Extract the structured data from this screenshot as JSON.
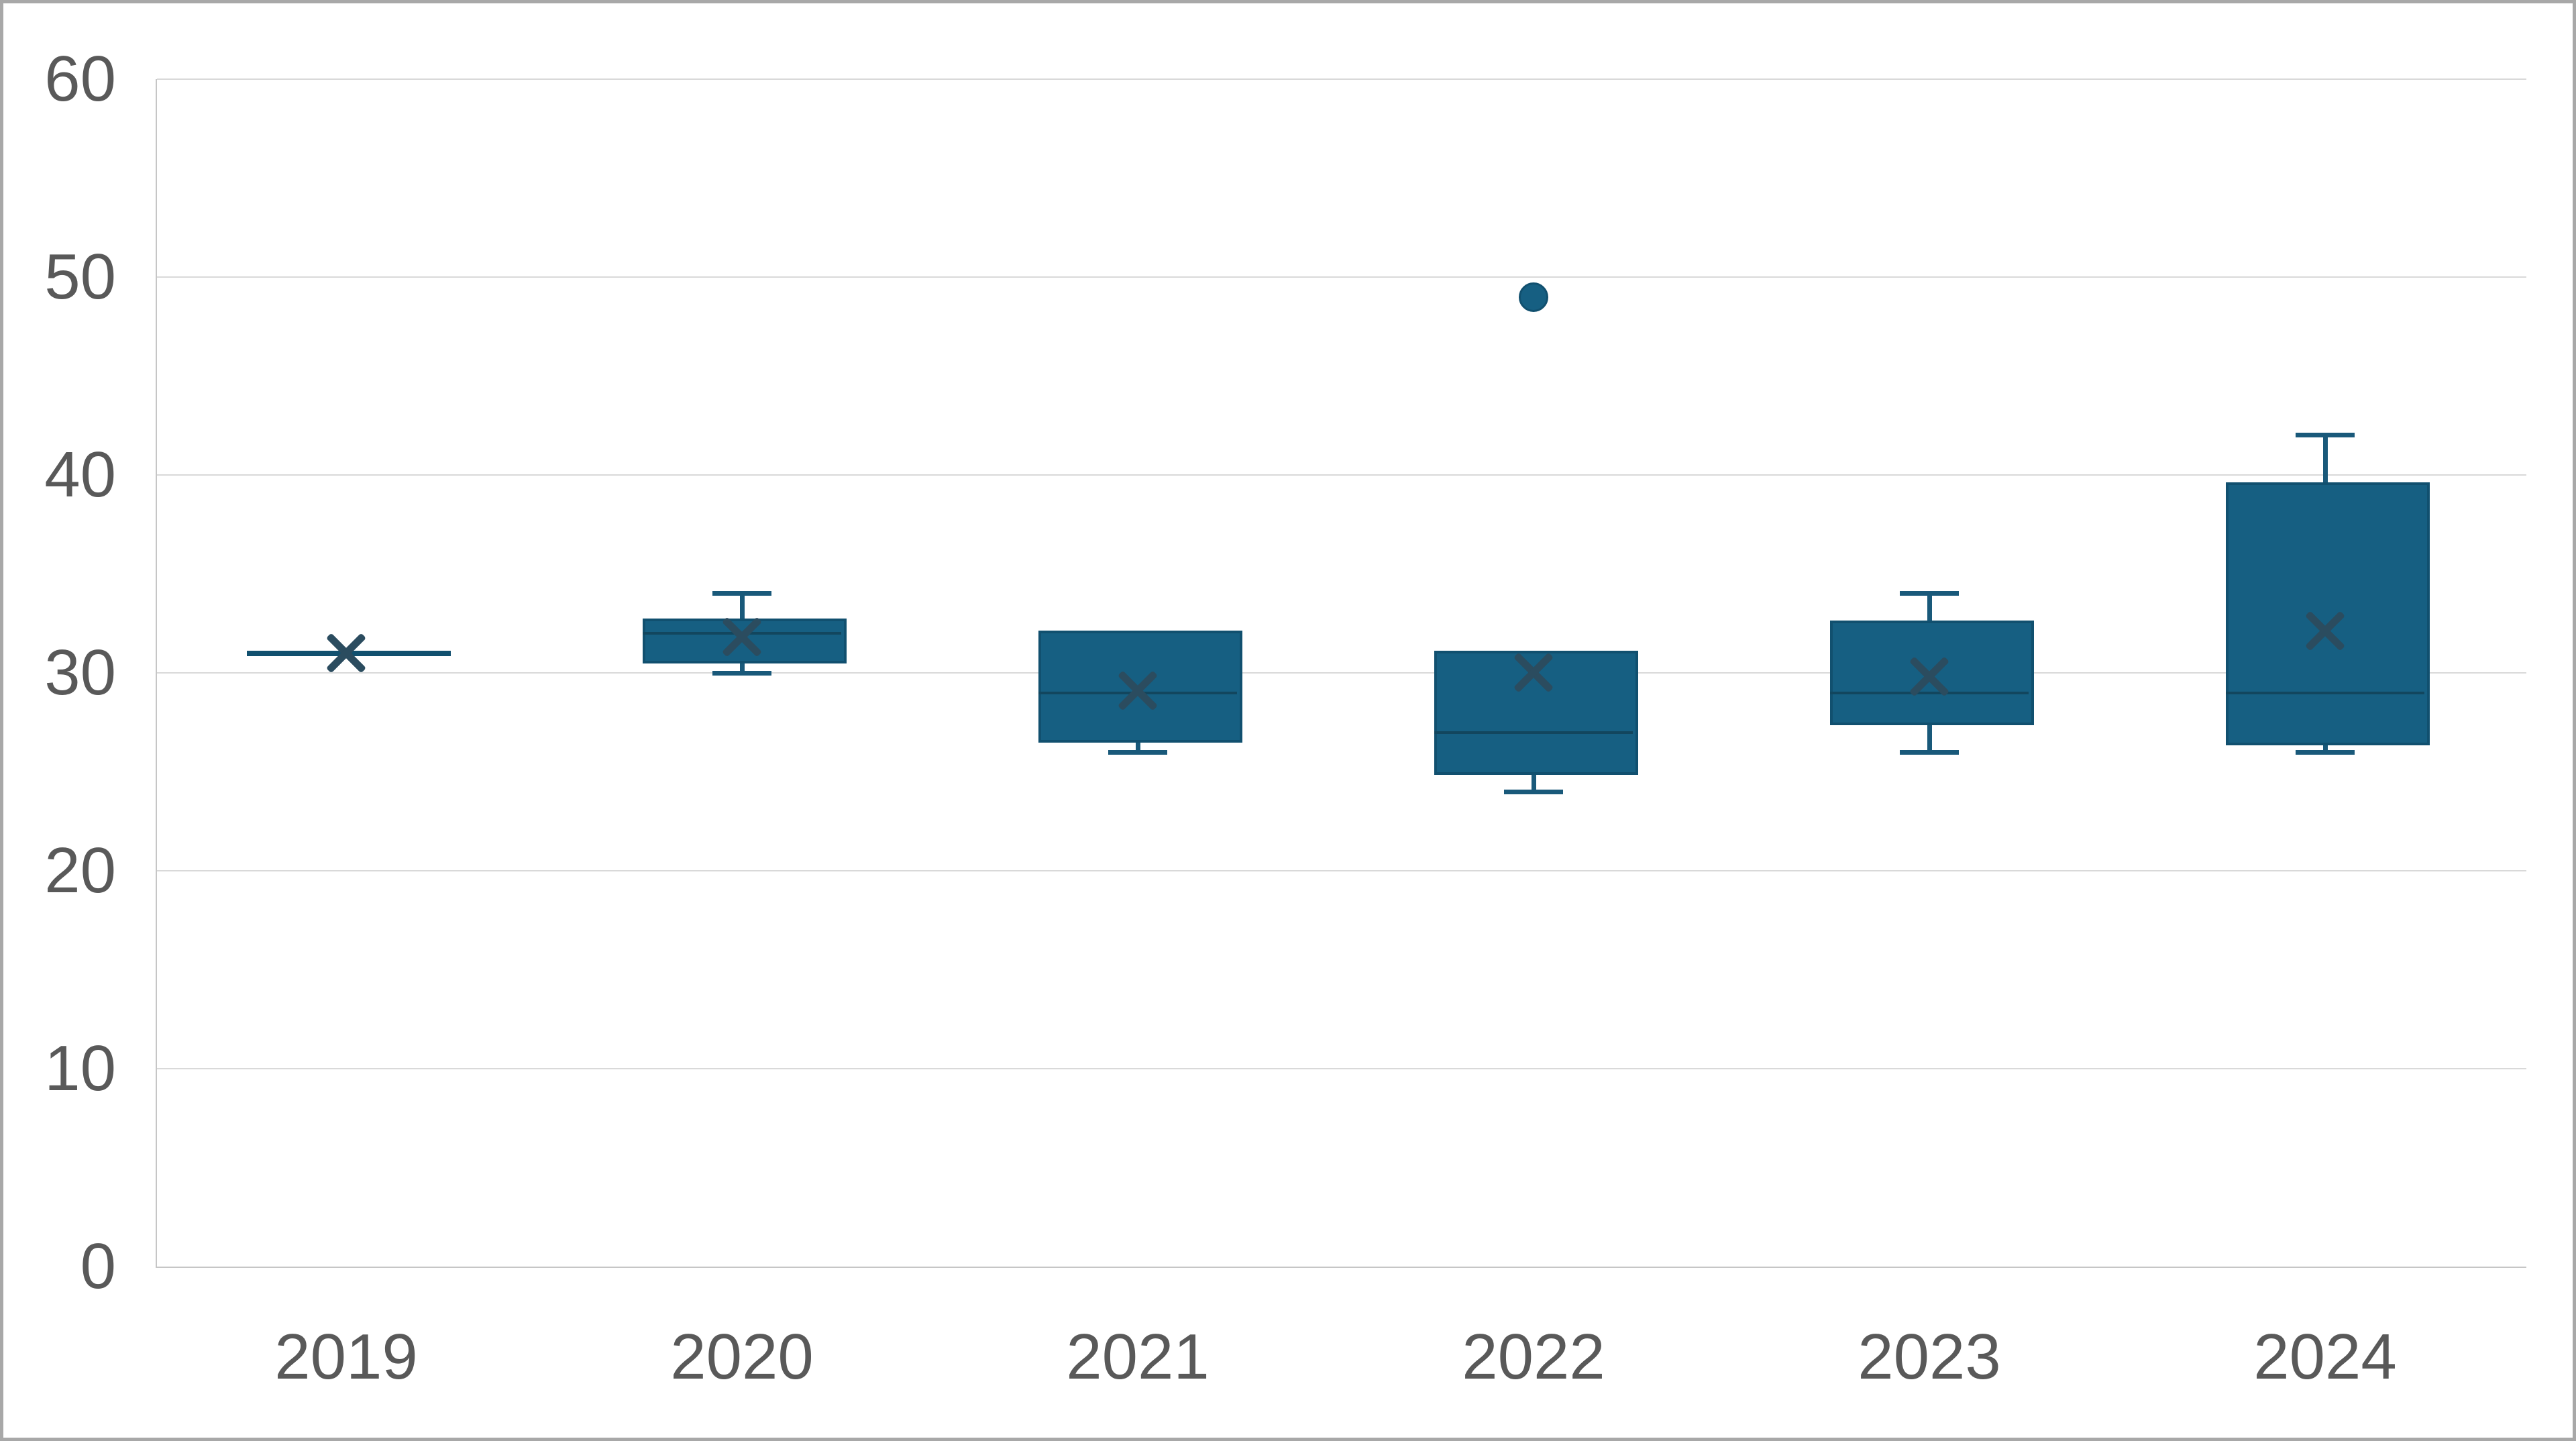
{
  "chart_data": {
    "type": "box",
    "title": "",
    "xlabel": "",
    "ylabel": "",
    "categories": [
      "2019",
      "2020",
      "2021",
      "2022",
      "2023",
      "2024"
    ],
    "series": [
      {
        "category": "2019",
        "min": 31,
        "q1": 31,
        "median": 31,
        "q3": 31,
        "max": 31,
        "mean": 31,
        "outliers": []
      },
      {
        "category": "2020",
        "min": 30,
        "q1": 30.6,
        "median": 32,
        "q3": 32.6,
        "max": 34,
        "mean": 31.8,
        "outliers": []
      },
      {
        "category": "2021",
        "min": 26,
        "q1": 26.6,
        "median": 29,
        "q3": 32,
        "max": 32,
        "mean": 29.1,
        "outliers": []
      },
      {
        "category": "2022",
        "min": 24,
        "q1": 25,
        "median": 27,
        "q3": 31,
        "max": 31,
        "mean": 30,
        "outliers": [
          49
        ]
      },
      {
        "category": "2023",
        "min": 26,
        "q1": 27.5,
        "median": 29,
        "q3": 32.5,
        "max": 34,
        "mean": 29.8,
        "outliers": []
      },
      {
        "category": "2024",
        "min": 26,
        "q1": 26.5,
        "median": 29,
        "q3": 39.5,
        "max": 42,
        "mean": 32.1,
        "outliers": []
      }
    ],
    "ylim": [
      0,
      60
    ],
    "ytick_step": 10,
    "yticks": [
      "0",
      "10",
      "20",
      "30",
      "40",
      "50",
      "60"
    ],
    "grid": true,
    "legend": false,
    "mean_marker": "x",
    "outlier_marker": "dot"
  },
  "colors": {
    "background": "#ffffff",
    "frame_border": "#a8a8a8",
    "gridline": "#d9d9d9",
    "axis_line": "#c6c6c6",
    "tick_label": "#595959",
    "box_fill": "#165f82",
    "box_border": "#11506f",
    "whisker": "#19597a",
    "median_line": "#12465e",
    "mean_marker": "#2b4c5f"
  }
}
